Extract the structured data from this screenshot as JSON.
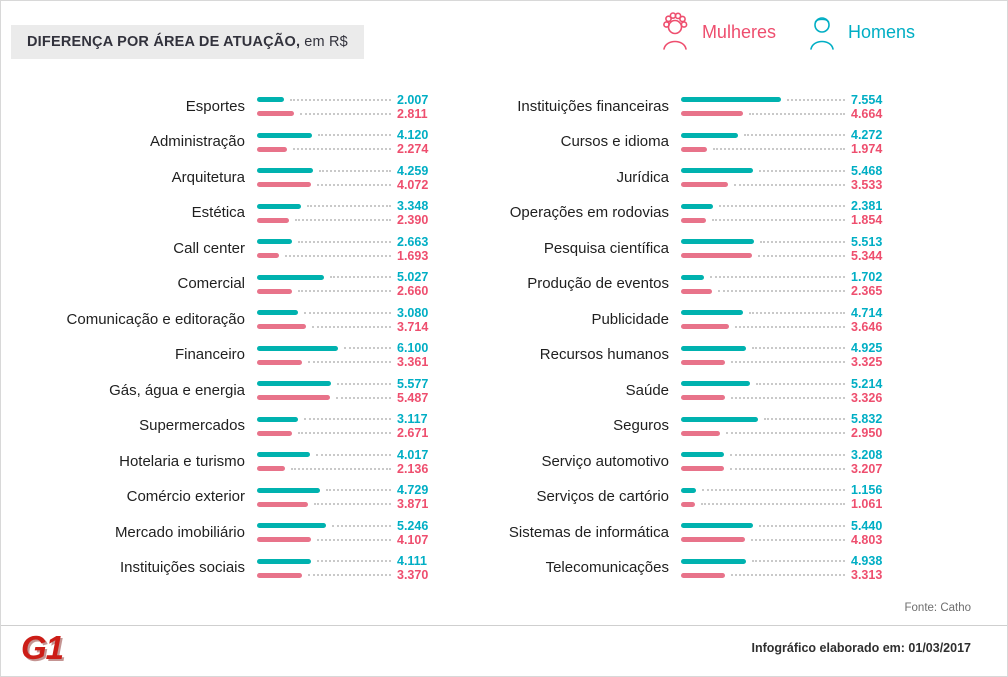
{
  "title": {
    "bold": "DIFERENÇA POR ÁREA DE ATUAÇÃO,",
    "suffix": "em R$"
  },
  "legend": {
    "women_label": "Mulheres",
    "men_label": "Homens"
  },
  "colors": {
    "men_bar": "#00b2af",
    "men_value": "#00aec4",
    "women_bar": "#e8738a",
    "women_value": "#ee4e6e",
    "banner_bg": "#ebebeb",
    "title_text": "#32323c",
    "label_text": "#1f1f1f",
    "leader_dots": "#c9c9c9",
    "source_text": "#6e6e6e",
    "footer_text": "#2f2f2f",
    "logo_red": "#cc1d17",
    "divider": "#cfcfcf"
  },
  "footer": {
    "source": "Fonte: Catho",
    "info": "Infográfico elaborado em: 01/03/2017",
    "logo": "G1"
  },
  "chart_data": {
    "type": "bar",
    "orientation": "horizontal",
    "title": "Diferença por área de atuação, em R$",
    "unit": "R$",
    "scale_max": 7554,
    "legend_position": "top-right",
    "series": [
      {
        "key": "men",
        "name": "Homens"
      },
      {
        "key": "women",
        "name": "Mulheres"
      }
    ],
    "left_rows": [
      {
        "label": "Esportes",
        "men": 2007,
        "women": 2811
      },
      {
        "label": "Administração",
        "men": 4120,
        "women": 2274
      },
      {
        "label": "Arquitetura",
        "men": 4259,
        "women": 4072
      },
      {
        "label": "Estética",
        "men": 3348,
        "women": 2390
      },
      {
        "label": "Call center",
        "men": 2663,
        "women": 1693
      },
      {
        "label": "Comercial",
        "men": 5027,
        "women": 2660
      },
      {
        "label": "Comunicação e editoração",
        "men": 3080,
        "women": 3714
      },
      {
        "label": "Financeiro",
        "men": 6100,
        "women": 3361
      },
      {
        "label": "Gás, água e energia",
        "men": 5577,
        "women": 5487
      },
      {
        "label": "Supermercados",
        "men": 3117,
        "women": 2671
      },
      {
        "label": "Hotelaria e turismo",
        "men": 4017,
        "women": 2136
      },
      {
        "label": "Comércio exterior",
        "men": 4729,
        "women": 3871
      },
      {
        "label": "Mercado imobiliário",
        "men": 5246,
        "women": 4107
      },
      {
        "label": "Instituições sociais",
        "men": 4111,
        "women": 3370
      }
    ],
    "right_rows": [
      {
        "label": "Instituições financeiras",
        "men": 7554,
        "women": 4664
      },
      {
        "label": "Cursos e idioma",
        "men": 4272,
        "women": 1974
      },
      {
        "label": "Jurídica",
        "men": 5468,
        "women": 3533
      },
      {
        "label": "Operações em rodovias",
        "men": 2381,
        "women": 1854
      },
      {
        "label": "Pesquisa científica",
        "men": 5513,
        "women": 5344
      },
      {
        "label": "Produção de eventos",
        "men": 1702,
        "women": 2365
      },
      {
        "label": "Publicidade",
        "men": 4714,
        "women": 3646
      },
      {
        "label": "Recursos humanos",
        "men": 4925,
        "women": 3325
      },
      {
        "label": "Saúde",
        "men": 5214,
        "women": 3326
      },
      {
        "label": "Seguros",
        "men": 5832,
        "women": 2950
      },
      {
        "label": "Serviço automotivo",
        "men": 3208,
        "women": 3207
      },
      {
        "label": "Serviços de cartório",
        "men": 1156,
        "women": 1061
      },
      {
        "label": "Sistemas de informática",
        "men": 5440,
        "women": 4803
      },
      {
        "label": "Telecomunicações",
        "men": 4938,
        "women": 3313
      }
    ]
  }
}
